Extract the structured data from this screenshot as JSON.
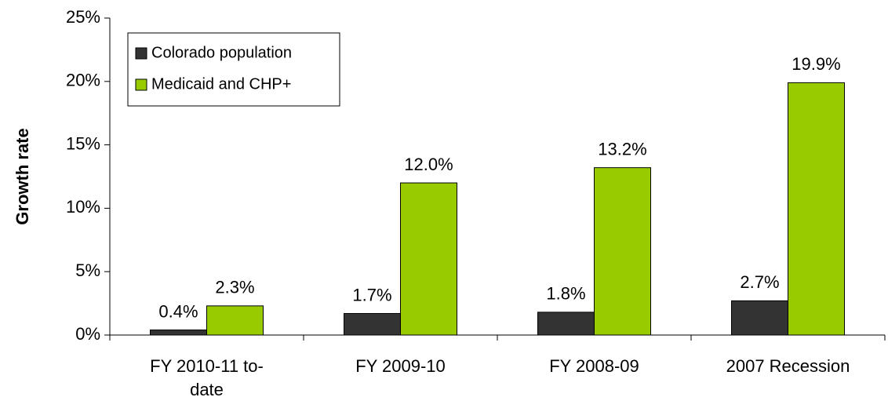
{
  "chart_data": {
    "type": "bar",
    "ylabel": "Growth rate",
    "categories": [
      "FY 2010-11 to-date",
      "FY 2009-10",
      "FY 2008-09",
      "2007 Recession"
    ],
    "series": [
      {
        "name": "Colorado population",
        "color": "#333333",
        "values": [
          0.4,
          1.7,
          1.8,
          2.7
        ],
        "value_labels": [
          "0.4%",
          "1.7%",
          "1.8%",
          "2.7%"
        ]
      },
      {
        "name": "Medicaid and CHP+",
        "color": "#99cc00",
        "values": [
          2.3,
          12.0,
          13.2,
          19.9
        ],
        "value_labels": [
          "2.3%",
          "12.0%",
          "13.2%",
          "19.9%"
        ]
      }
    ],
    "ylim": [
      0,
      25
    ],
    "yticks": [
      {
        "value": 0,
        "label": "0%"
      },
      {
        "value": 5,
        "label": "5%"
      },
      {
        "value": 10,
        "label": "10%"
      },
      {
        "value": 15,
        "label": "15%"
      },
      {
        "value": 20,
        "label": "20%"
      },
      {
        "value": 25,
        "label": "25%"
      }
    ],
    "legend": "upper left",
    "grid": false
  }
}
